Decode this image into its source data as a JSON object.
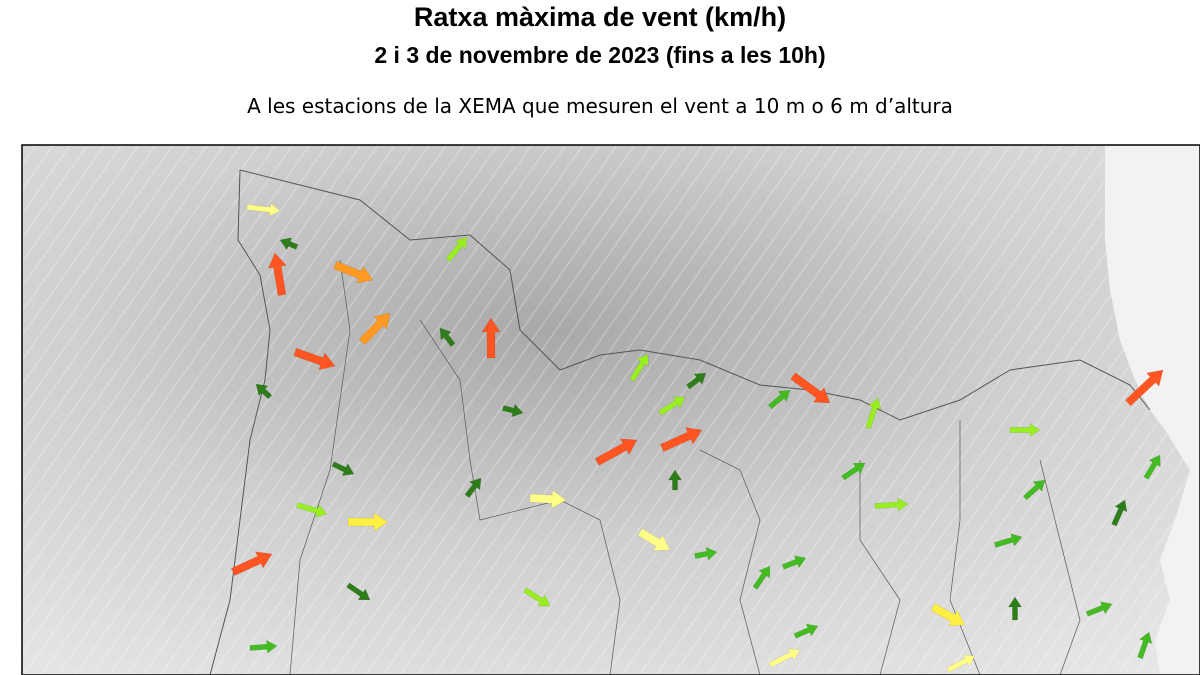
{
  "header": {
    "title": "Ratxa màxima de vent (km/h)",
    "subtitle": "2 i 3 de novembre de 2023 (fins a les 10h)",
    "caption": "A les estacions de la XEMA que mesuren el vent a 10 m o 6 m d’altura"
  }
}
